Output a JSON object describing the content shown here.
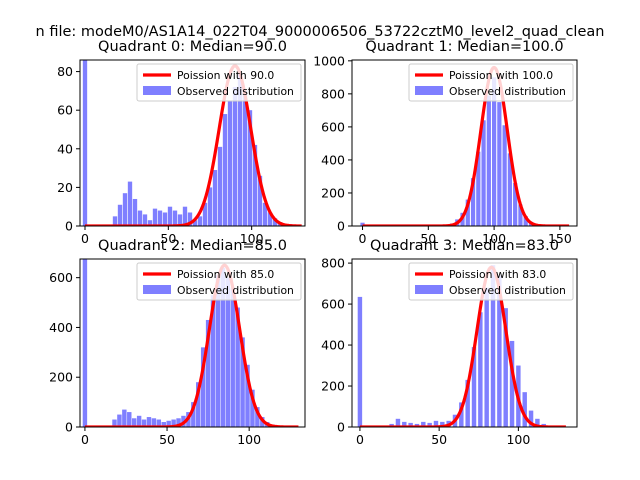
{
  "figure": {
    "suptitle": "n file: modeM0/AS1A14_022T04_9000006506_53722cztM0_level2_quad_clean"
  },
  "legend": {
    "observed_label": "Observed distribution"
  },
  "colors": {
    "poisson_line": "#ff0000",
    "histogram": "#7f7fff",
    "axis": "#000000",
    "background": "#ffffff",
    "legend_border": "#cccccc"
  },
  "chart_data": [
    {
      "type": "bar",
      "panel": "quadrant-0",
      "title": "Quadrant 0: Median=90.0",
      "legend_poisson": "Poission with 90.0",
      "legend_observed": "Observed distribution",
      "legend_position": "top-right",
      "xlim": [
        -3,
        132
      ],
      "ylim": [
        0,
        86
      ],
      "xticks": [
        0,
        50,
        100
      ],
      "yticks": [
        0,
        20,
        40,
        60,
        80
      ],
      "bin_width": 2.6,
      "hist_x": [
        0,
        18,
        21,
        24,
        27,
        30,
        33,
        36,
        39,
        42,
        45,
        48,
        51,
        54,
        57,
        60,
        63,
        66,
        69,
        72,
        75,
        78,
        81,
        84,
        87,
        90,
        93,
        96,
        99,
        102,
        105,
        108,
        111,
        114,
        117,
        120,
        123
      ],
      "hist_values": [
        86,
        5,
        11,
        17,
        23,
        14,
        8,
        6,
        3,
        9,
        8,
        7,
        10,
        8,
        6,
        10,
        7,
        3,
        5,
        12,
        20,
        29,
        41,
        58,
        65,
        72,
        79,
        70,
        60,
        42,
        26,
        12,
        7,
        4,
        2,
        1,
        1
      ],
      "poisson_mean": 90.0,
      "poisson_peak": 83,
      "poisson_sigma": 9.5,
      "poisson_xrange": [
        0,
        130
      ]
    },
    {
      "type": "bar",
      "panel": "quadrant-1",
      "title": "Quadrant 1: Median=100.0",
      "legend_poisson": "Poission with 100.0",
      "legend_observed": "Observed distribution",
      "legend_position": "top-right",
      "xlim": [
        -8,
        163
      ],
      "ylim": [
        0,
        1005
      ],
      "xticks": [
        0,
        50,
        100,
        150
      ],
      "yticks": [
        0,
        200,
        400,
        600,
        800,
        1000
      ],
      "bin_width": 3.2,
      "hist_x": [
        0,
        60,
        64,
        68,
        72,
        76,
        80,
        84,
        88,
        92,
        96,
        100,
        104,
        108,
        112,
        116,
        120,
        124,
        128,
        132,
        136,
        140
      ],
      "hist_values": [
        20,
        3,
        5,
        15,
        40,
        80,
        160,
        290,
        450,
        640,
        790,
        900,
        750,
        610,
        440,
        260,
        130,
        60,
        25,
        10,
        4,
        2
      ],
      "poisson_mean": 100.0,
      "poisson_peak": 960,
      "poisson_sigma": 10.0,
      "poisson_xrange": [
        0,
        157
      ]
    },
    {
      "type": "bar",
      "panel": "quadrant-2",
      "title": "Quadrant 2: Median=85.0",
      "legend_poisson": "Poission with 85.0",
      "legend_observed": "Observed distribution",
      "legend_position": "top-right",
      "xlim": [
        -3,
        134
      ],
      "ylim": [
        0,
        675
      ],
      "xticks": [
        0,
        50,
        100
      ],
      "yticks": [
        0,
        200,
        400,
        600
      ],
      "bin_width": 2.7,
      "hist_x": [
        0,
        18,
        21,
        24,
        27,
        30,
        33,
        36,
        39,
        42,
        45,
        48,
        51,
        54,
        57,
        60,
        63,
        66,
        69,
        72,
        75,
        78,
        81,
        84,
        87,
        90,
        93,
        96,
        99,
        102,
        105,
        108,
        111,
        114,
        117,
        120
      ],
      "hist_values": [
        675,
        30,
        50,
        70,
        60,
        35,
        45,
        30,
        40,
        35,
        30,
        20,
        25,
        30,
        35,
        45,
        60,
        100,
        180,
        320,
        430,
        530,
        610,
        640,
        600,
        560,
        480,
        360,
        250,
        150,
        80,
        40,
        20,
        10,
        5,
        3
      ],
      "poisson_mean": 85.0,
      "poisson_peak": 650,
      "poisson_sigma": 9.2,
      "poisson_xrange": [
        0,
        130
      ]
    },
    {
      "type": "bar",
      "panel": "quadrant-3",
      "title": "Quadrant 3: Median=83.0",
      "legend_poisson": "Poission with 83.0",
      "legend_observed": "Observed distribution",
      "legend_position": "top-right",
      "xlim": [
        -5,
        137
      ],
      "ylim": [
        0,
        820
      ],
      "xticks": [
        0,
        50,
        100
      ],
      "yticks": [
        0,
        200,
        400,
        600,
        800
      ],
      "bin_width": 2.8,
      "hist_x": [
        0,
        20,
        24,
        28,
        32,
        36,
        40,
        44,
        48,
        52,
        56,
        60,
        64,
        68,
        72,
        76,
        80,
        84,
        88,
        92,
        96,
        100,
        104,
        108,
        112,
        116,
        120,
        124
      ],
      "hist_values": [
        635,
        15,
        40,
        25,
        20,
        15,
        25,
        20,
        30,
        25,
        30,
        60,
        120,
        230,
        390,
        560,
        680,
        790,
        740,
        580,
        420,
        300,
        170,
        80,
        40,
        15,
        6,
        2
      ],
      "poisson_mean": 83.0,
      "poisson_peak": 780,
      "poisson_sigma": 9.1,
      "poisson_xrange": [
        0,
        130
      ]
    }
  ]
}
